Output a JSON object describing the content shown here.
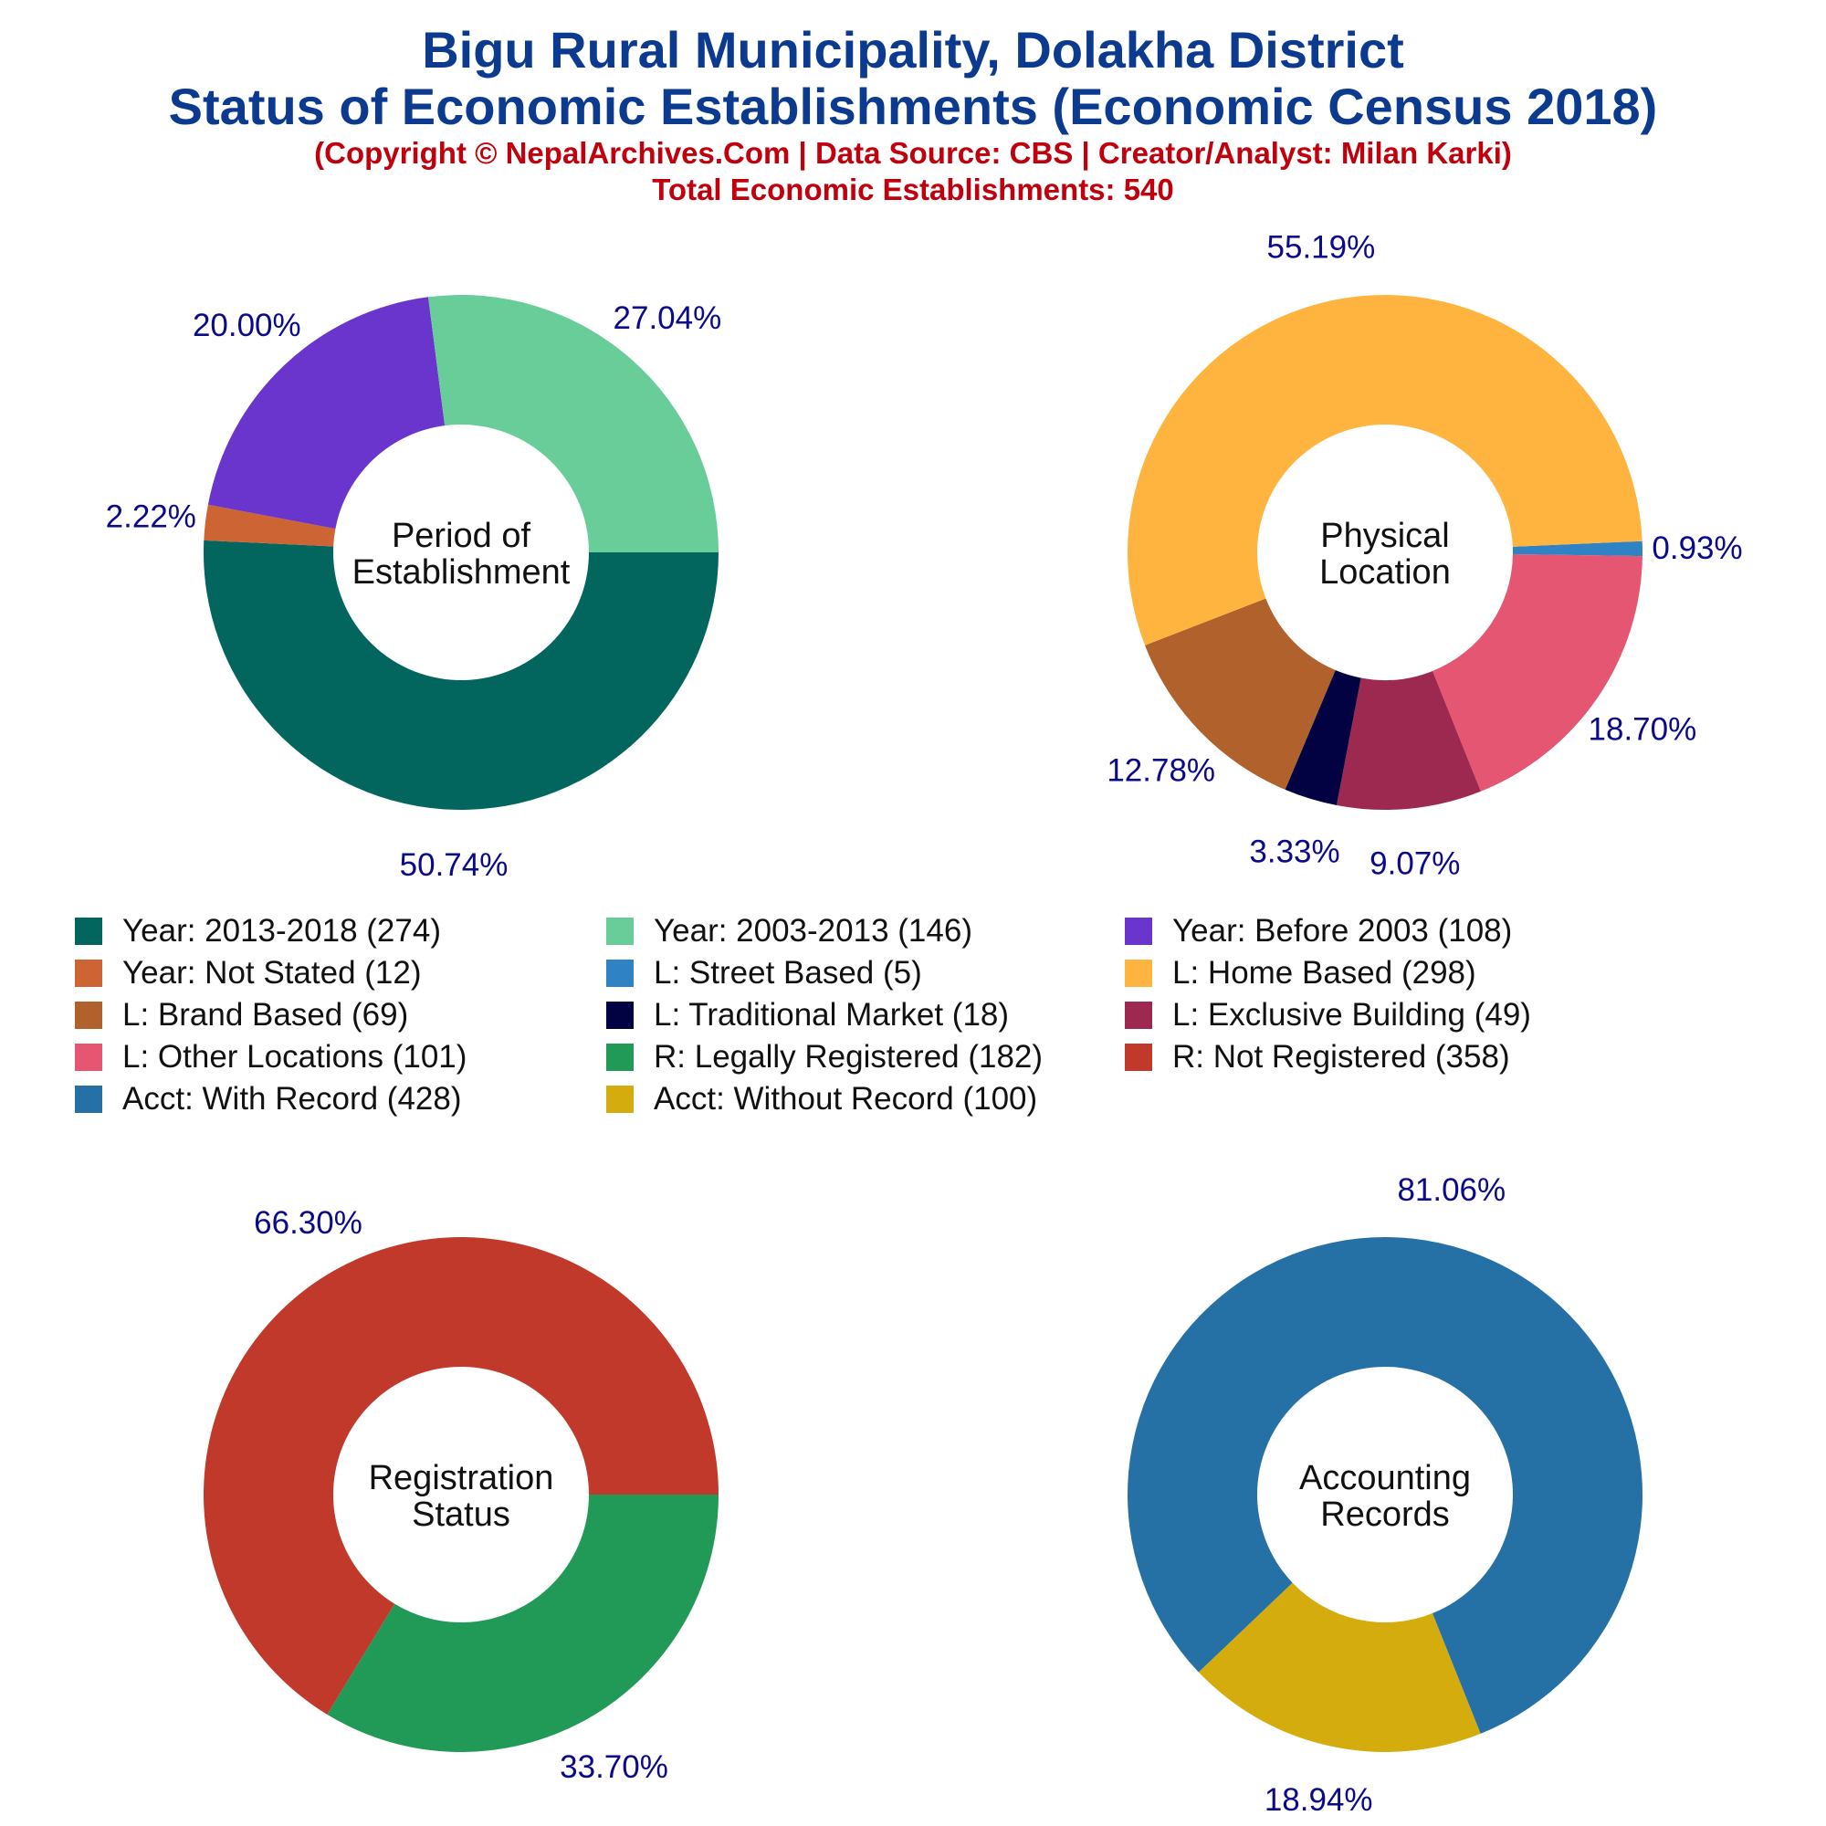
{
  "header": {
    "title_line1": "Bigu Rural Municipality, Dolakha District",
    "title_line2": "Status of Economic Establishments (Economic Census 2018)",
    "copyright": "(Copyright © NepalArchives.Com | Data Source: CBS | Creator/Analyst: Milan Karki)",
    "total": "Total Economic Establishments: 540"
  },
  "chart_data": [
    {
      "type": "pie",
      "title": "",
      "center_label": [
        "Period of",
        "Establishment"
      ],
      "slices": [
        {
          "label": "Year: 2013-2018",
          "value": 274,
          "percent": "50.74%",
          "color": "#02665f"
        },
        {
          "label": "Year: Not Stated",
          "value": 12,
          "percent": "2.22%",
          "color": "#cc6434"
        },
        {
          "label": "Year: Before 2003",
          "value": 108,
          "percent": "20.00%",
          "color": "#6a35cc"
        },
        {
          "label": "Year: 2003-2013",
          "value": 146,
          "percent": "27.04%",
          "color": "#68cd98"
        }
      ]
    },
    {
      "type": "pie",
      "title": "",
      "center_label": [
        "Physical",
        "Location"
      ],
      "slices": [
        {
          "label": "L: Street Based",
          "value": 5,
          "percent": "0.93%",
          "color": "#2f82c4"
        },
        {
          "label": "L: Other Locations",
          "value": 101,
          "percent": "18.70%",
          "color": "#e45672"
        },
        {
          "label": "L: Exclusive Building",
          "value": 49,
          "percent": "9.07%",
          "color": "#9d2951"
        },
        {
          "label": "L: Traditional Market",
          "value": 18,
          "percent": "3.33%",
          "color": "#020242"
        },
        {
          "label": "L: Brand Based",
          "value": 69,
          "percent": "12.78%",
          "color": "#b1612c"
        },
        {
          "label": "L: Home Based",
          "value": 298,
          "percent": "55.19%",
          "color": "#feb43f"
        }
      ]
    },
    {
      "type": "pie",
      "title": "",
      "center_label": [
        "Registration",
        "Status"
      ],
      "slices": [
        {
          "label": "R: Legally Registered",
          "value": 182,
          "percent": "33.70%",
          "color": "#229a57"
        },
        {
          "label": "R: Not Registered",
          "value": 358,
          "percent": "66.30%",
          "color": "#c0392b"
        }
      ]
    },
    {
      "type": "pie",
      "title": "",
      "center_label": [
        "Accounting",
        "Records"
      ],
      "slices": [
        {
          "label": "Acct: Without Record",
          "value": 100,
          "percent": "18.94%",
          "color": "#d4ac0d"
        },
        {
          "label": "Acct: With Record",
          "value": 428,
          "percent": "81.06%",
          "color": "#2571a5"
        }
      ]
    }
  ],
  "legend": [
    {
      "text": "Year: 2013-2018 (274)",
      "color": "#02665f"
    },
    {
      "text": "Year: 2003-2013 (146)",
      "color": "#68cd98"
    },
    {
      "text": "Year: Before 2003 (108)",
      "color": "#6a35cc"
    },
    {
      "text": "Year: Not Stated (12)",
      "color": "#cc6434"
    },
    {
      "text": "L: Street Based (5)",
      "color": "#2f82c4"
    },
    {
      "text": "L: Home Based (298)",
      "color": "#feb43f"
    },
    {
      "text": "L: Brand Based (69)",
      "color": "#b1612c"
    },
    {
      "text": "L: Traditional Market (18)",
      "color": "#020242"
    },
    {
      "text": "L: Exclusive Building (49)",
      "color": "#9d2951"
    },
    {
      "text": "L: Other Locations (101)",
      "color": "#e45672"
    },
    {
      "text": "R: Legally Registered (182)",
      "color": "#229a57"
    },
    {
      "text": "R: Not Registered (358)",
      "color": "#c0392b"
    },
    {
      "text": "Acct: With Record (428)",
      "color": "#2571a5"
    },
    {
      "text": "Acct: Without Record (100)",
      "color": "#d4ac0d"
    }
  ]
}
